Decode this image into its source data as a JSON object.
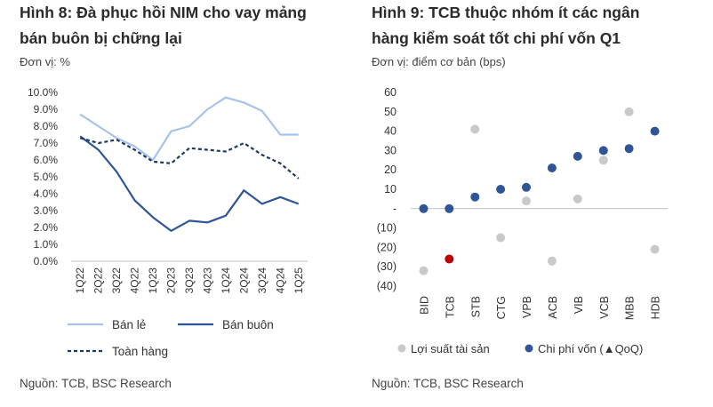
{
  "charts": {
    "left": {
      "title_line1": "Hình 8: Đà phục hồi NIM cho vay mảng",
      "title_line2": "bán buôn bị chững lại",
      "unit": "Đơn vị: %",
      "source": "Nguồn: TCB, BSC Research"
    },
    "right": {
      "title_line1": "Hình 9: TCB thuộc nhóm ít các ngân",
      "title_line2": "hàng kiểm soát tốt chi phí vốn Q1",
      "unit": "Đơn vị: điểm cơ bản (bps)",
      "source": "Nguồn: TCB, BSC Research"
    }
  },
  "chart_data": [
    {
      "type": "line",
      "title": "Hình 8: Đà phục hồi NIM cho vay mảng bán buôn bị chững lại",
      "unit": "Đơn vị: %",
      "categories": [
        "1Q22",
        "2Q22",
        "3Q22",
        "4Q22",
        "1Q23",
        "2Q23",
        "3Q23",
        "4Q23",
        "1Q24",
        "2Q24",
        "3Q24",
        "4Q24",
        "1Q25"
      ],
      "ylim": [
        0,
        10
      ],
      "yticks": [
        "0.0%",
        "1.0%",
        "2.0%",
        "3.0%",
        "4.0%",
        "5.0%",
        "6.0%",
        "7.0%",
        "8.0%",
        "9.0%",
        "10.0%"
      ],
      "grid": false,
      "legend_position": "bottom",
      "series": [
        {
          "name": "Bán lẻ",
          "color": "#a7c3e9",
          "style": "solid",
          "values": [
            8.7,
            8.0,
            7.3,
            6.8,
            6.0,
            7.7,
            8.0,
            9.0,
            9.7,
            9.4,
            8.9,
            7.5,
            7.5
          ]
        },
        {
          "name": "Bán buôn",
          "color": "#2f5597",
          "style": "solid",
          "values": [
            7.4,
            6.6,
            5.3,
            3.6,
            2.6,
            1.8,
            2.4,
            2.3,
            2.7,
            4.2,
            3.4,
            3.8,
            3.4
          ]
        },
        {
          "name": "Toàn hàng",
          "color": "#1f3864",
          "style": "dashed",
          "values": [
            7.3,
            7.0,
            7.2,
            6.6,
            5.9,
            5.8,
            6.7,
            6.6,
            6.5,
            7.0,
            6.3,
            5.8,
            4.9
          ]
        }
      ]
    },
    {
      "type": "scatter",
      "title": "Hình 9: TCB thuộc nhóm ít các ngân hàng kiểm soát tốt chi phí vốn Q1",
      "unit": "Đơn vị: điểm cơ bản (bps)",
      "categories": [
        "BID",
        "TCB",
        "STB",
        "CTG",
        "VPB",
        "ACB",
        "VIB",
        "VCB",
        "MBB",
        "HDB"
      ],
      "ylim": [
        -40,
        60
      ],
      "yticks": [
        "(40)",
        "(30)",
        "(20)",
        "(10)",
        "-",
        "10",
        "20",
        "30",
        "40",
        "50",
        "60"
      ],
      "grid": false,
      "legend_position": "bottom",
      "highlight": {
        "category": "TCB",
        "series": "Lợi suất tài sản",
        "color": "#c00000"
      },
      "series": [
        {
          "name": "Lợi suất tài sản",
          "color": "#c9c9c9",
          "values": [
            -32,
            -26,
            41,
            -15,
            4,
            -27,
            5,
            25,
            50,
            -21
          ]
        },
        {
          "name": "Chi phí vốn (▲QoQ)",
          "color": "#2f5597",
          "values": [
            0,
            0,
            6,
            10,
            11,
            21,
            27,
            30,
            31,
            40
          ]
        }
      ]
    }
  ]
}
